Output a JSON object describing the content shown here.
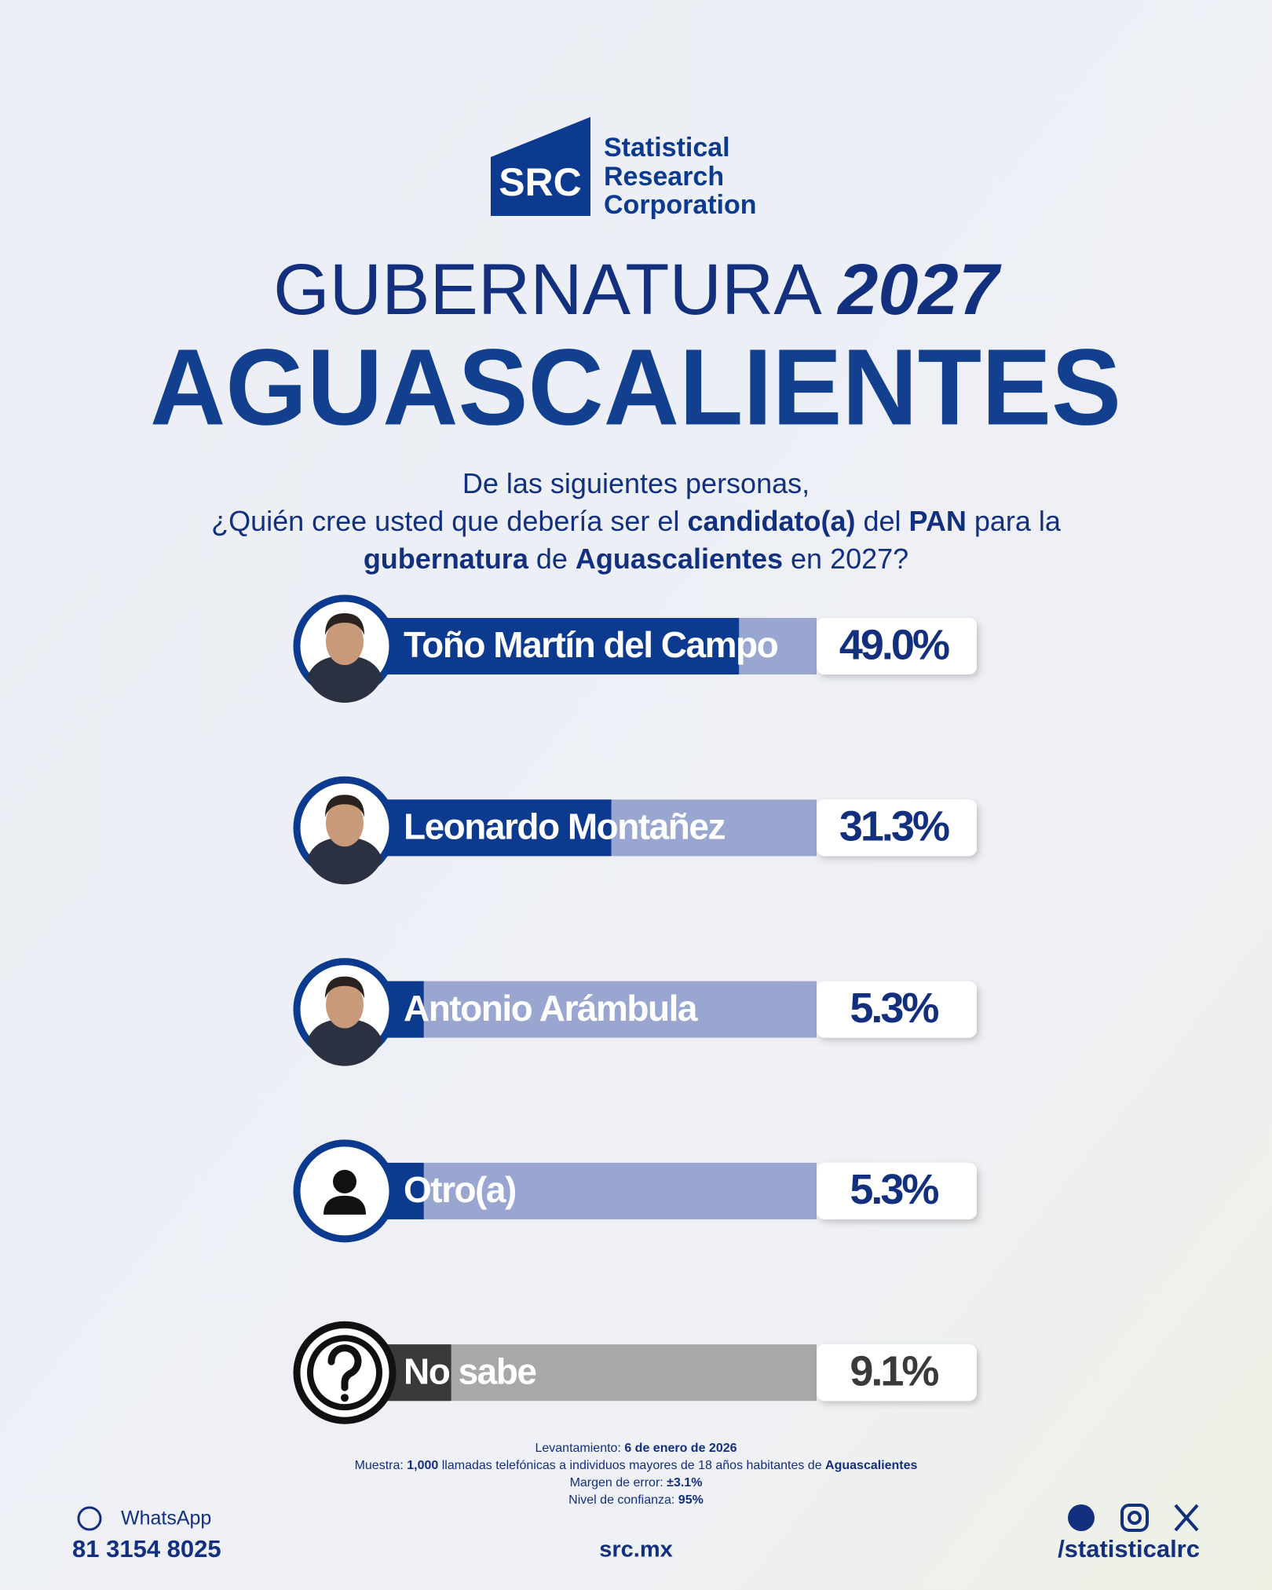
{
  "header": {
    "logo_mark": "SRC",
    "logo_lines": [
      "Statistical",
      "Research",
      "Corporation"
    ]
  },
  "title": {
    "line1": "GUBERNATURA",
    "year": "2027",
    "state": "AGUASCALIENTES"
  },
  "question": [
    [
      {
        "text": "De las siguientes personas,",
        "bold": false
      }
    ],
    [
      {
        "text": "¿Quién cree usted que debería ser el ",
        "bold": false
      },
      {
        "text": "candidato(a)",
        "bold": true
      },
      {
        "text": " del ",
        "bold": false
      },
      {
        "text": "PAN",
        "bold": true
      },
      {
        "text": " para la",
        "bold": false
      }
    ],
    [
      {
        "text": "gubernatura",
        "bold": true
      },
      {
        "text": " de ",
        "bold": false
      },
      {
        "text": "Aguascalientes",
        "bold": true
      },
      {
        "text": " en 2027?",
        "bold": false
      }
    ]
  ],
  "chart_data": {
    "type": "bar",
    "orientation": "horizontal",
    "categories": [
      "Toño Martín del Campo",
      "Leonardo Montañez",
      "Antonio Arámbula",
      "Otro(a)",
      "No sabe"
    ],
    "values": [
      49.0,
      31.3,
      5.3,
      5.3,
      9.1
    ],
    "value_labels": [
      "49.0%",
      "31.3%",
      "5.3%",
      "5.3%",
      "9.1%"
    ],
    "colors": [
      "#0b3a8e",
      "#0b3a8e",
      "#0b3a8e",
      "#0b3a8e",
      "#3b3939"
    ]
  },
  "footer": {
    "methodology": [
      [
        {
          "text": "Levantamiento: ",
          "bold": false
        },
        {
          "text": "6 de enero de 2026",
          "bold": true
        }
      ],
      [
        {
          "text": "Muestra: ",
          "bold": false
        },
        {
          "text": "1,000",
          "bold": true
        },
        {
          "text": " llamadas telefónicas a individuos mayores de 18 años habitantes de ",
          "bold": false
        },
        {
          "text": "Aguascalientes",
          "bold": true
        }
      ],
      [
        {
          "text": "Margen de error: ",
          "bold": false
        },
        {
          "text": "±3.1%",
          "bold": true
        }
      ],
      [
        {
          "text": "Nivel de confianza: ",
          "bold": false
        },
        {
          "text": "95%",
          "bold": true
        }
      ]
    ],
    "whatsapp_label": "WhatsApp",
    "phone": "81 3154 8025",
    "website": "src.mx",
    "social_handle": "/statisticalrc"
  }
}
